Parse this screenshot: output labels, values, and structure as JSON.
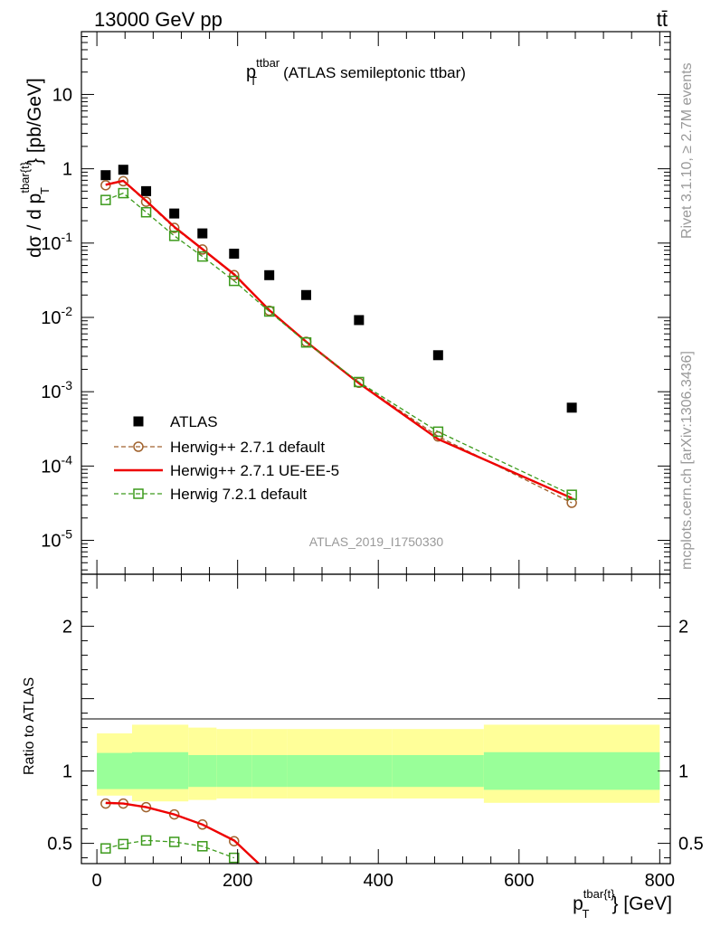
{
  "header": {
    "left": "13000 GeV pp",
    "right": "tt̄"
  },
  "side": {
    "rivet": "Rivet 3.1.10, ≥ 2.7M events",
    "mcplots": "mcplots.cern.ch [arXiv:1306.3436]"
  },
  "colors": {
    "data": "#000000",
    "herwigpp_default": "#a0622d",
    "herwigpp_ueee5": "#ee0000",
    "herwig7_default": "#3c9a1c",
    "band_inner": "#99ff99",
    "band_outer": "#ffff99"
  },
  "chart_data": [
    {
      "type": "scatter",
      "panel": "main",
      "title_main": "p",
      "title_sup": "ttbar",
      "title_sub": "T",
      "title_rest": "(ATLAS semileptonic ttbar)",
      "ylabel_prefix": "dσ / d p",
      "ylabel_sup": "tbar{t}",
      "ylabel_sub": "T",
      "ylabel_suffix": "} [pb/GeV]",
      "yscale": "log",
      "xlim": [
        -22,
        815
      ],
      "ylim": [
        3.5e-06,
        70
      ],
      "yticks": [
        {
          "base": "10",
          "exp": "-5",
          "v": 1e-05
        },
        {
          "base": "10",
          "exp": "-4",
          "v": 0.0001
        },
        {
          "base": "10",
          "exp": "-3",
          "v": 0.001
        },
        {
          "base": "10",
          "exp": "-2",
          "v": 0.01
        },
        {
          "base": "10",
          "exp": "-1",
          "v": 0.1
        },
        {
          "base": "1",
          "exp": "",
          "v": 1
        },
        {
          "base": "10",
          "exp": "",
          "v": 10
        }
      ],
      "watermark": "ATLAS_2019_I1750330",
      "legend_position": "middle-left",
      "x": [
        12.5,
        37.5,
        70,
        110,
        150,
        195,
        245,
        297.5,
        372.5,
        485,
        675
      ],
      "series": [
        {
          "name": "ATLAS",
          "style": "data",
          "values": [
            0.82,
            0.97,
            0.5,
            0.25,
            0.135,
            0.072,
            0.037,
            0.02,
            0.0092,
            0.0031,
            0.00061
          ]
        },
        {
          "name": "Herwig++ 2.7.1 default",
          "style": "circle-dashed",
          "values": [
            0.6,
            0.68,
            0.36,
            0.16,
            0.082,
            0.037,
            0.0123,
            0.0047,
            0.00132,
            0.00025,
            3.2e-05
          ]
        },
        {
          "name": "Herwig++ 2.7.1 UE-EE-5",
          "style": "solid",
          "values": [
            0.61,
            0.69,
            0.37,
            0.165,
            0.083,
            0.038,
            0.0125,
            0.0047,
            0.0013,
            0.00023,
            3.7e-05
          ]
        },
        {
          "name": "Herwig 7.2.1 default",
          "style": "square-dashed",
          "values": [
            0.38,
            0.47,
            0.26,
            0.125,
            0.066,
            0.031,
            0.012,
            0.0046,
            0.00135,
            0.00029,
            4.1e-05
          ]
        }
      ]
    },
    {
      "type": "line",
      "panel": "ratio",
      "ylabel": "Ratio to ATLAS",
      "xlabel_prefix": "p",
      "xlabel_sup": "tbar{t}",
      "xlabel_sub": "T",
      "xlabel_suffix": "} [GeV]",
      "xlim": [
        -22,
        815
      ],
      "ylim": [
        0.36,
        2.36
      ],
      "xticks": [
        0,
        200,
        400,
        600,
        800
      ],
      "yticks": [
        0.5,
        1,
        2
      ],
      "bin_edges": [
        0,
        50,
        130,
        170,
        220,
        270,
        320,
        420,
        550,
        800
      ],
      "band_inner": [
        [
          0.875,
          1.125
        ],
        [
          0.875,
          1.13
        ],
        [
          0.89,
          1.11
        ],
        [
          0.89,
          1.11
        ],
        [
          0.89,
          1.11
        ],
        [
          0.89,
          1.11
        ],
        [
          0.89,
          1.11
        ],
        [
          0.89,
          1.11
        ],
        [
          0.87,
          1.13
        ]
      ],
      "band_outer": [
        [
          0.83,
          1.26
        ],
        [
          0.79,
          1.32
        ],
        [
          0.8,
          1.3
        ],
        [
          0.81,
          1.29
        ],
        [
          0.81,
          1.29
        ],
        [
          0.81,
          1.29
        ],
        [
          0.81,
          1.29
        ],
        [
          0.81,
          1.29
        ],
        [
          0.78,
          1.32
        ]
      ],
      "x": [
        12.5,
        37.5,
        70,
        110,
        150,
        195
      ],
      "series": [
        {
          "name": "Herwig++ 2.7.1 default",
          "style": "circle-dashed",
          "values": [
            0.775,
            0.775,
            0.75,
            0.7,
            0.63,
            0.515
          ]
        },
        {
          "name": "Herwig++ 2.7.1 UE-EE-5",
          "style": "solid",
          "x": [
            12.5,
            37.5,
            70,
            110,
            150,
            195,
            230
          ],
          "values": [
            0.78,
            0.775,
            0.75,
            0.7,
            0.63,
            0.52,
            0.36
          ]
        },
        {
          "name": "Herwig 7.2.1 default",
          "style": "square-dashed",
          "values": [
            0.465,
            0.495,
            0.52,
            0.51,
            0.48,
            0.4
          ]
        }
      ]
    }
  ]
}
